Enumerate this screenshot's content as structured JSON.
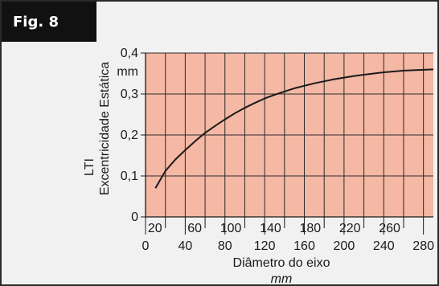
{
  "figure_label": "Fig. 8",
  "chart_data": {
    "type": "line",
    "xlabel": "Diâmetro do eixo",
    "xunit": "mm",
    "ylabel_line1": "LTI",
    "ylabel_line2": "Excentricidade Estática",
    "yunit": "mm",
    "xlim": [
      0,
      290
    ],
    "ylim": [
      0,
      0.4
    ],
    "x_ticks_bottom": [
      "0",
      "40",
      "80",
      "120",
      "160",
      "200",
      "240",
      "280"
    ],
    "x_ticks_top": [
      "20",
      "60",
      "100",
      "140",
      "180",
      "220",
      "260"
    ],
    "y_ticks": [
      "0",
      "0,1",
      "0,2",
      "0,3",
      "0,4"
    ],
    "grid": true,
    "plot_color": "#f4b8a4",
    "line_color": "#1a1a1a",
    "series": [
      {
        "x": [
          10,
          20,
          30,
          40,
          50,
          60,
          70,
          80,
          90,
          100,
          110,
          120,
          130,
          140,
          150,
          160,
          170,
          180,
          190,
          200,
          210,
          220,
          230,
          240,
          250,
          260,
          270,
          280,
          290
        ],
        "y": [
          0.07,
          0.112,
          0.14,
          0.163,
          0.185,
          0.205,
          0.222,
          0.238,
          0.253,
          0.266,
          0.278,
          0.289,
          0.298,
          0.306,
          0.314,
          0.32,
          0.326,
          0.331,
          0.336,
          0.34,
          0.344,
          0.347,
          0.35,
          0.353,
          0.355,
          0.357,
          0.358,
          0.359,
          0.36
        ]
      }
    ]
  }
}
